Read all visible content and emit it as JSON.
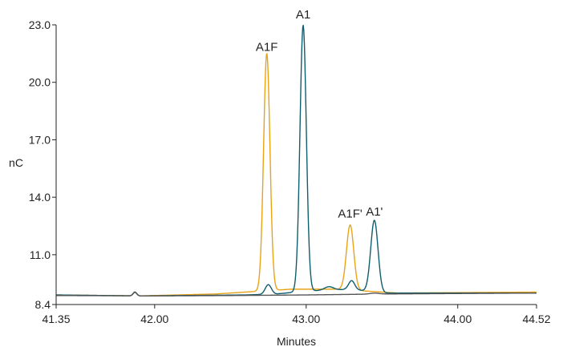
{
  "chart_data": {
    "type": "line",
    "title": "",
    "xlabel": "Minutes",
    "ylabel": "nC",
    "xlim": [
      41.35,
      44.52
    ],
    "ylim": [
      8.4,
      23.0
    ],
    "x_ticks": [
      {
        "value": 41.35,
        "label": "41.35"
      },
      {
        "value": 42.0,
        "label": "42.00"
      },
      {
        "value": 43.0,
        "label": "43.00"
      },
      {
        "value": 44.0,
        "label": "44.00"
      },
      {
        "value": 44.52,
        "label": "44.52"
      }
    ],
    "y_ticks": [
      {
        "value": 8.4,
        "label": "8.4"
      },
      {
        "value": 11.0,
        "label": "11.0"
      },
      {
        "value": 14.0,
        "label": "14.0"
      },
      {
        "value": 17.0,
        "label": "17.0"
      },
      {
        "value": 20.0,
        "label": "20.0"
      },
      {
        "value": 23.0,
        "label": "23.0"
      }
    ],
    "grid": false,
    "series": [
      {
        "color": "#e8a317",
        "baseline": [
          [
            41.35,
            8.9
          ],
          [
            41.9,
            8.85
          ],
          [
            42.4,
            8.95
          ],
          [
            42.6,
            9.05
          ],
          [
            42.9,
            9.2
          ],
          [
            43.2,
            9.2
          ],
          [
            43.6,
            9.0
          ],
          [
            44.52,
            9.05
          ]
        ],
        "peaks": [
          {
            "x": 41.87,
            "height": 0.2,
            "width": 0.012
          },
          {
            "x": 42.74,
            "height": 12.4,
            "width": 0.021
          },
          {
            "x": 43.29,
            "height": 3.4,
            "width": 0.024
          }
        ]
      },
      {
        "color": "#0f5e6e",
        "baseline": [
          [
            41.35,
            8.9
          ],
          [
            41.9,
            8.85
          ],
          [
            42.6,
            8.9
          ],
          [
            42.8,
            8.95
          ],
          [
            43.0,
            9.1
          ],
          [
            43.3,
            9.2
          ],
          [
            43.5,
            9.0
          ],
          [
            44.52,
            9.0
          ]
        ],
        "peaks": [
          {
            "x": 41.87,
            "height": 0.2,
            "width": 0.012
          },
          {
            "x": 42.75,
            "height": 0.5,
            "width": 0.02
          },
          {
            "x": 42.98,
            "height": 13.9,
            "width": 0.021
          },
          {
            "x": 43.15,
            "height": 0.18,
            "width": 0.03
          },
          {
            "x": 43.3,
            "height": 0.45,
            "width": 0.02
          },
          {
            "x": 43.45,
            "height": 3.75,
            "width": 0.024
          }
        ]
      },
      {
        "color": "#555555",
        "baseline": [
          [
            41.35,
            8.87
          ],
          [
            42.0,
            8.85
          ],
          [
            42.5,
            8.87
          ],
          [
            43.0,
            8.9
          ],
          [
            43.5,
            8.95
          ],
          [
            44.52,
            9.0
          ]
        ],
        "peaks": [
          {
            "x": 41.87,
            "height": 0.18,
            "width": 0.012
          },
          {
            "x": 43.45,
            "height": 0.05,
            "width": 0.03
          }
        ]
      }
    ],
    "annotations": [
      {
        "text": "A1F",
        "x": 42.74,
        "y": 21.3
      },
      {
        "text": "A1",
        "x": 42.98,
        "y": 23.0
      },
      {
        "text": "A1F'",
        "x": 43.29,
        "y": 12.6
      },
      {
        "text": "A1'",
        "x": 43.45,
        "y": 12.7
      }
    ]
  }
}
